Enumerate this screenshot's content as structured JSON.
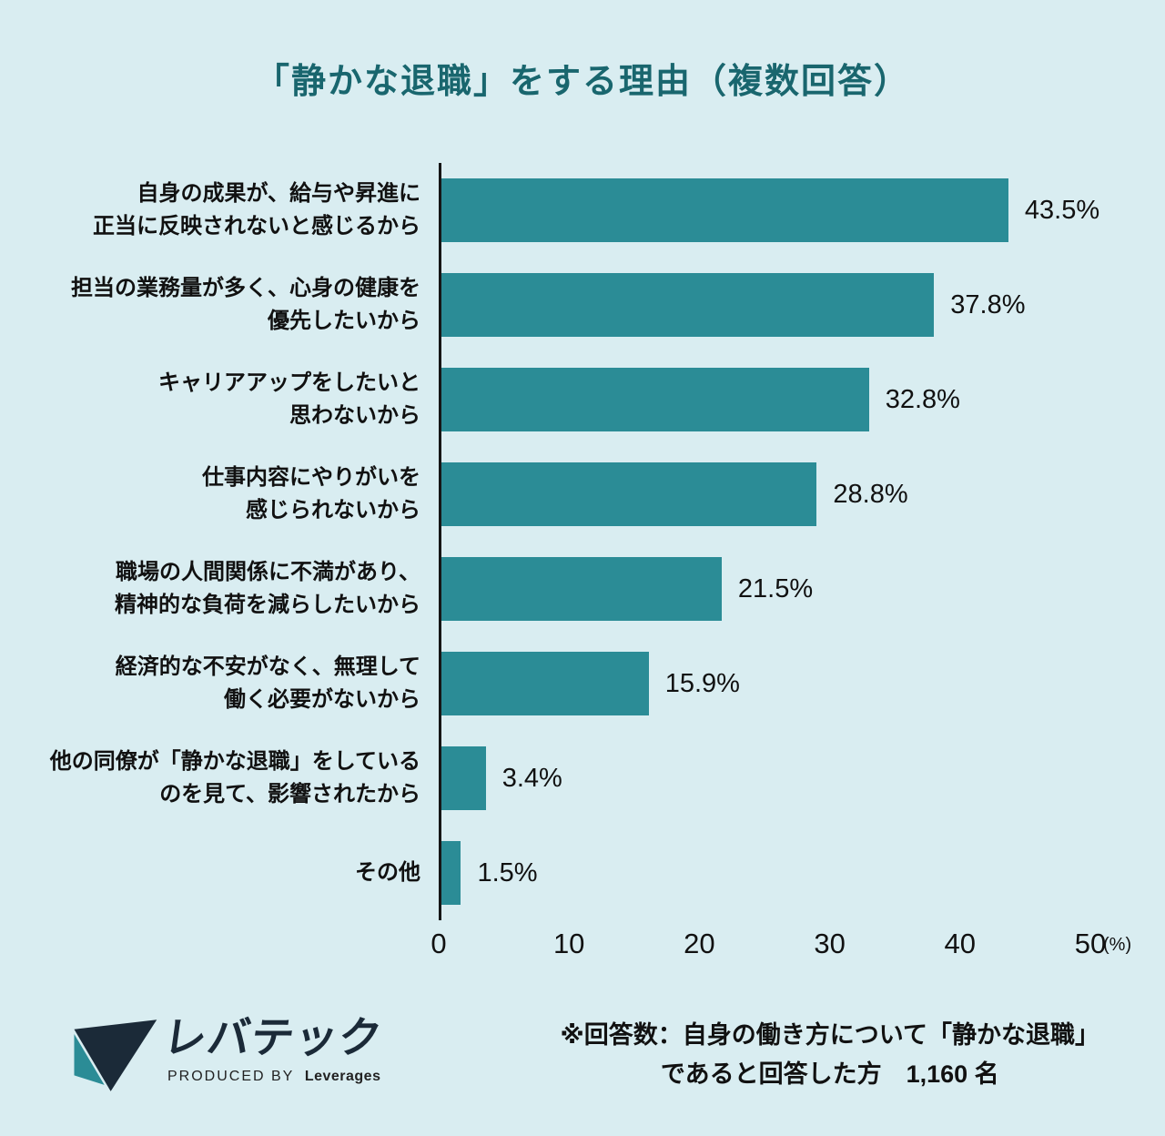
{
  "chart_data": {
    "type": "bar",
    "orientation": "horizontal",
    "title": "「静かな退職」をする理由（複数回答）",
    "categories": [
      [
        "自身の成果が、給与や昇進に",
        "正当に反映されないと感じるから"
      ],
      [
        "担当の業務量が多く、心身の健康を",
        "優先したいから"
      ],
      [
        "キャリアアップをしたいと",
        "思わないから"
      ],
      [
        "仕事内容にやりがいを",
        "感じられないから"
      ],
      [
        "職場の人間関係に不満があり、",
        "精神的な負荷を減らしたいから"
      ],
      [
        "経済的な不安がなく、無理して",
        "働く必要がないから"
      ],
      [
        "他の同僚が「静かな退職」をしている",
        "のを見て、影響されたから"
      ],
      [
        "その他"
      ]
    ],
    "values": [
      43.5,
      37.8,
      32.8,
      28.8,
      21.5,
      15.9,
      3.4,
      1.5
    ],
    "value_labels": [
      "43.5%",
      "37.8%",
      "32.8%",
      "28.8%",
      "21.5%",
      "15.9%",
      "3.4%",
      "1.5%"
    ],
    "xlim": [
      0,
      50
    ],
    "x_ticks": [
      0,
      10,
      20,
      30,
      40,
      50
    ],
    "x_unit": "(%)",
    "grid": false,
    "legend": "none"
  },
  "colors": {
    "background": "#d9edf1",
    "bar": "#2b8c96",
    "title": "#19666e",
    "axis": "#161616",
    "logo_navy": "#1b2a38",
    "logo_teal": "#2b8c96"
  },
  "footer": {
    "logo_text": "レバテック",
    "logo_sub_prefix": "PRODUCED BY",
    "logo_sub_name": "Leverages",
    "note_lines": [
      "※回答数：自身の働き方について「静かな退職」",
      "であると回答した方　1,160 名"
    ]
  }
}
